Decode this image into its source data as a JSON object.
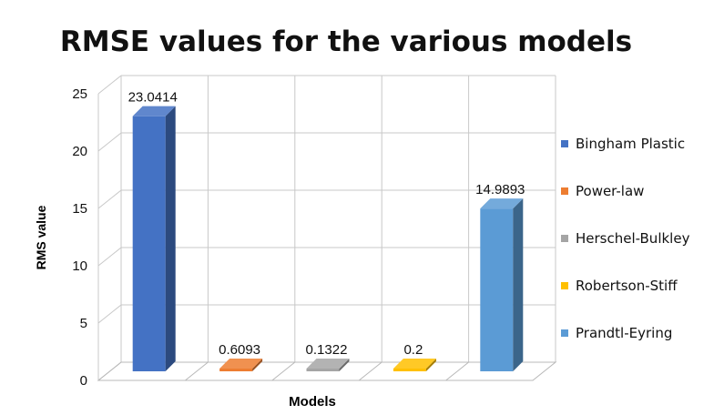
{
  "chart_data": {
    "type": "bar",
    "title": "RMSE values for the various models",
    "xlabel": "Models",
    "ylabel": "RMS value",
    "ylim": [
      0,
      25
    ],
    "yticks": [
      0,
      5,
      10,
      15,
      20,
      25
    ],
    "grid": true,
    "three_d": true,
    "legend_position": "right",
    "series": [
      {
        "name": "Bingham Plastic",
        "value": 23.0414,
        "label": "23.0414",
        "color": "#4472C4"
      },
      {
        "name": "Power-law",
        "value": 0.6093,
        "label": "0.6093",
        "color": "#ED7D31"
      },
      {
        "name": "Herschel-Bulkley",
        "value": 0.1322,
        "label": "0.1322",
        "color": "#A5A5A5"
      },
      {
        "name": "Robertson-Stiff",
        "value": 0.2,
        "label": "0.2",
        "color": "#FFC000"
      },
      {
        "name": "Prandtl-Eyring",
        "value": 14.9893,
        "label": "14.9893",
        "color": "#5B9BD5"
      }
    ]
  }
}
